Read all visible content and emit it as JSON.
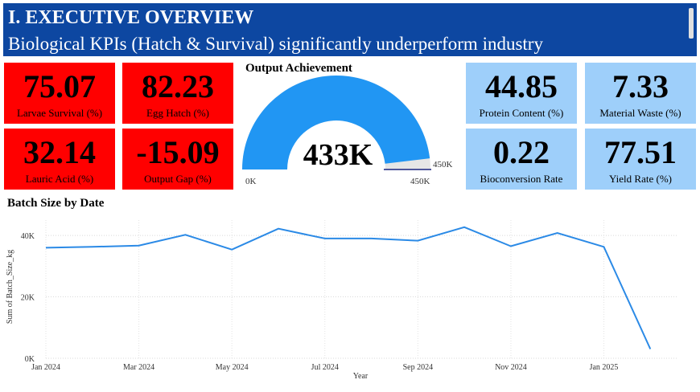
{
  "header": {
    "title": "I. EXECUTIVE OVERVIEW",
    "subtitle": "Biological KPIs (Hatch & Survival) significantly underperform industry"
  },
  "kpis_red": [
    {
      "value": "75.07",
      "label": "Larvae Survival (%)"
    },
    {
      "value": "82.23",
      "label": "Egg Hatch (%)"
    },
    {
      "value": "32.14",
      "label": "Lauric Acid (%)"
    },
    {
      "value": "-15.09",
      "label": "Output Gap (%)"
    }
  ],
  "kpis_blue": [
    {
      "value": "44.85",
      "label": "Protein Content (%)"
    },
    {
      "value": "7.33",
      "label": "Material Waste (%)"
    },
    {
      "value": "0.22",
      "label": "Bioconversion Rate"
    },
    {
      "value": "77.51",
      "label": "Yield Rate (%)"
    }
  ],
  "gauge": {
    "title": "Output Achievement",
    "value_label": "433K",
    "min_label": "0K",
    "max_label": "450K",
    "target_label": "450K",
    "value": 433,
    "max": 450,
    "fill_color": "#2196f3",
    "track_color": "#e6e6e6"
  },
  "colors": {
    "header_bg": "#0d47a1",
    "kpi_red": "#ff0000",
    "kpi_blue": "#9ecffa",
    "line": "#2b8ae6"
  },
  "chart_data": {
    "type": "line",
    "title": "Batch Size by Date",
    "xlabel": "Year",
    "ylabel": "Sum of Batch_Size_kg",
    "x": [
      "2024-01",
      "2024-02",
      "2024-03",
      "2024-04",
      "2024-05",
      "2024-06",
      "2024-07",
      "2024-08",
      "2024-09",
      "2024-10",
      "2024-11",
      "2024-12",
      "2025-01",
      "2025-02"
    ],
    "y": [
      36000,
      36300,
      36700,
      40200,
      35400,
      42200,
      39000,
      39000,
      38300,
      42700,
      36500,
      40800,
      36300,
      3000
    ],
    "x_ticks": [
      "Jan 2024",
      "Mar 2024",
      "May 2024",
      "Jul 2024",
      "Sep 2024",
      "Nov 2024",
      "Jan 2025"
    ],
    "y_ticks": [
      "0K",
      "20K",
      "40K"
    ],
    "ylim": [
      0,
      45000
    ],
    "grid": true
  }
}
